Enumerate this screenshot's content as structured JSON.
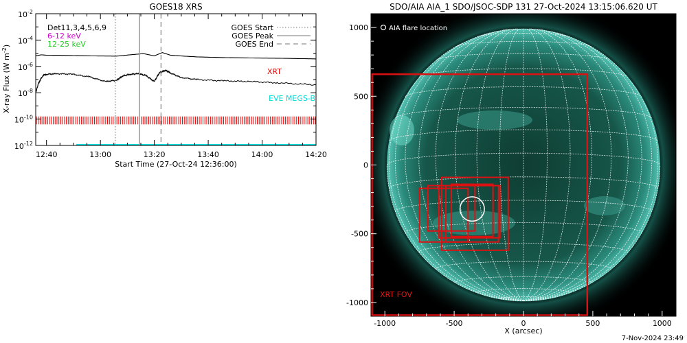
{
  "goes": {
    "title": "GOES18 XRS",
    "ylabel_main": "X-ray Flux (W m",
    "ylabel_sup": "-2",
    "ylabel_close": ")",
    "xlabel": "Start Time (27-Oct-24 12:36:00)",
    "legend_left": [
      {
        "text": "Det11,3,4,5,6,9",
        "color": "#000000"
      },
      {
        "text": "6-12 keV",
        "color": "#cc00cc"
      },
      {
        "text": "12-25 keV",
        "color": "#22cc22"
      }
    ],
    "legend_right": [
      {
        "text": "GOES Start",
        "style": "dotted"
      },
      {
        "text": "GOES Peak",
        "style": "solid"
      },
      {
        "text": "GOES End",
        "style": "dashed"
      }
    ],
    "xrt_label": "XRT",
    "eve_label": "EVE MEGS-B"
  },
  "aia": {
    "title": "SDO/AIA AIA_1 SDO/JSOC-SDP 131 27-Oct-2024 13:15:06.620 UT",
    "legend_text": "AIA flare location",
    "fov_label": "XRT FOV",
    "xlabel": "X (arcsec)",
    "footer_date": "7-Nov-2024 23:49"
  },
  "chart_data": [
    {
      "type": "line",
      "title": "GOES18 XRS",
      "xlabel": "Start Time (27-Oct-24 12:36:00)",
      "ylabel": "X-ray Flux (W m^-2)",
      "yscale": "log",
      "x_unit": "minutes since 12:36:00",
      "xlim": [
        0,
        104
      ],
      "ylim_exp": [
        -12,
        -2
      ],
      "x_ticks": [
        4,
        24,
        44,
        64,
        84,
        104
      ],
      "x_tick_labels": [
        "12:40",
        "13:00",
        "13:20",
        "13:40",
        "14:00",
        "14:20"
      ],
      "y_tick_exponents": [
        -12,
        -10,
        -8,
        -6,
        -4,
        -2
      ],
      "markers": [
        {
          "name": "GOES Start",
          "x": 29.5,
          "style": "dotted"
        },
        {
          "name": "GOES Peak",
          "x": 38.5,
          "style": "solid"
        },
        {
          "name": "GOES End",
          "x": 46.5,
          "style": "dashed"
        }
      ],
      "series": [
        {
          "name": "GOES long channel",
          "x": [
            0,
            2,
            4,
            10,
            20,
            30,
            35,
            40,
            44,
            47,
            50,
            55,
            60,
            70,
            80,
            90,
            104
          ],
          "log_y": [
            -5.2,
            -5.12,
            -5.15,
            -5.16,
            -5.2,
            -5.22,
            -5.12,
            -5.03,
            -5.2,
            -4.95,
            -5.15,
            -5.22,
            -5.28,
            -5.33,
            -5.36,
            -5.38,
            -5.43
          ]
        },
        {
          "name": "GOES short channel",
          "x": [
            0,
            1,
            2,
            3,
            4,
            8,
            14,
            20,
            26,
            30,
            32,
            35,
            38,
            41,
            44,
            46,
            48,
            50,
            54,
            60,
            70,
            80,
            90,
            104
          ],
          "log_y": [
            -8,
            -7.3,
            -6.9,
            -6.65,
            -6.6,
            -6.55,
            -6.6,
            -6.8,
            -7.15,
            -7.05,
            -6.75,
            -6.6,
            -6.55,
            -6.7,
            -7.15,
            -6.45,
            -6.3,
            -6.5,
            -6.85,
            -7.0,
            -7.1,
            -7.15,
            -7.25,
            -7.4
          ]
        }
      ],
      "xrt_band_log_y": [
        -10.4,
        -9.8
      ],
      "eve_log_y": -12
    },
    {
      "type": "scatter",
      "title": "SDO/AIA AIA_1 SDO/JSOC-SDP 131 27-Oct-2024 13:15:06.620 UT",
      "xlabel": "X (arcsec)",
      "xlim": [
        -1100,
        1100
      ],
      "ylim": [
        -1100,
        1100
      ],
      "x_ticks": [
        -1000,
        -500,
        0,
        500,
        1000
      ],
      "y_ticks": [
        1000,
        500,
        0,
        -500,
        -1000
      ],
      "solar_radius_arcsec": 985,
      "flare_location": [
        -370,
        -320
      ],
      "xrt_fov": [
        -1100,
        -1100,
        460,
        660
      ],
      "xrt_boxes": [
        [
          -750,
          -560,
          -400,
          -170
        ],
        [
          -690,
          -480,
          -350,
          -150
        ],
        [
          -590,
          -620,
          -110,
          -90
        ],
        [
          -610,
          -530,
          -170,
          -150
        ],
        [
          -560,
          -560,
          -180,
          -150
        ],
        [
          -520,
          -520,
          -220,
          -140
        ]
      ]
    }
  ]
}
